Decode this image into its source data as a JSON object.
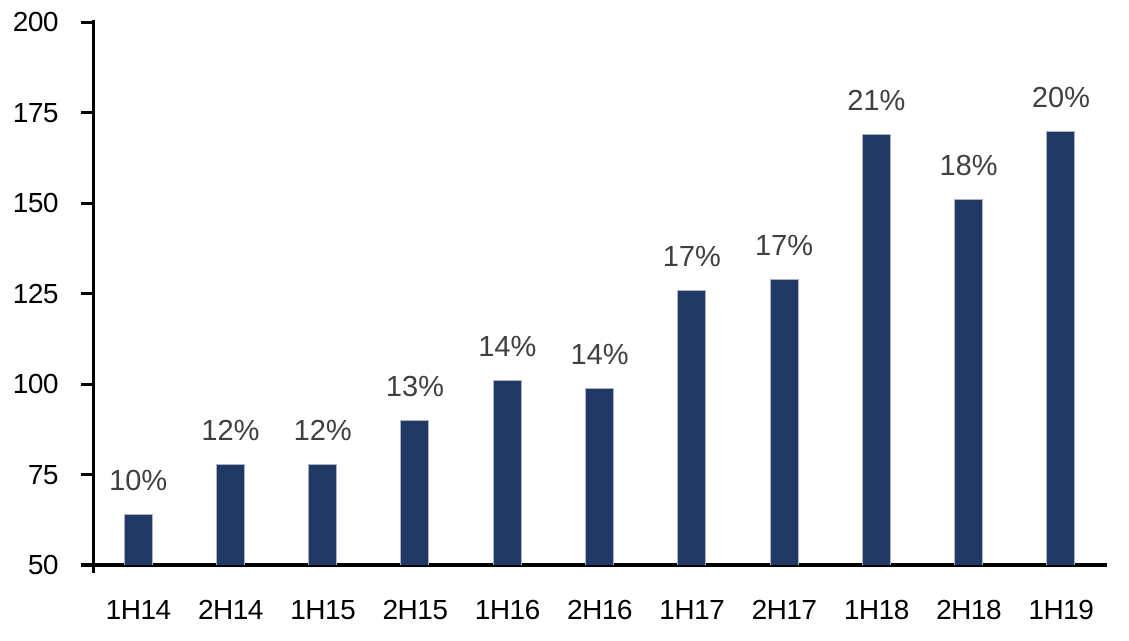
{
  "chart_data": {
    "type": "bar",
    "title": "",
    "xlabel": "",
    "ylabel": "",
    "categories": [
      "1H14",
      "2H14",
      "1H15",
      "2H15",
      "1H16",
      "2H16",
      "1H17",
      "2H17",
      "1H18",
      "2H18",
      "1H19"
    ],
    "values": [
      64,
      78,
      78,
      90,
      101,
      99,
      126,
      129,
      169,
      151,
      170
    ],
    "bar_labels": [
      "10%",
      "12%",
      "12%",
      "13%",
      "14%",
      "14%",
      "17%",
      "17%",
      "21%",
      "18%",
      "20%"
    ],
    "ylim": [
      50,
      200
    ],
    "yticks": [
      50,
      75,
      100,
      125,
      150,
      175,
      200
    ],
    "grid": false,
    "legend": false,
    "colors": {
      "bar_fill": "#1f3864",
      "bar_border": "#a9b4c8",
      "value_label": "#404040",
      "axis_text": "#000000",
      "axis_line": "#000000",
      "background": "#ffffff"
    }
  }
}
